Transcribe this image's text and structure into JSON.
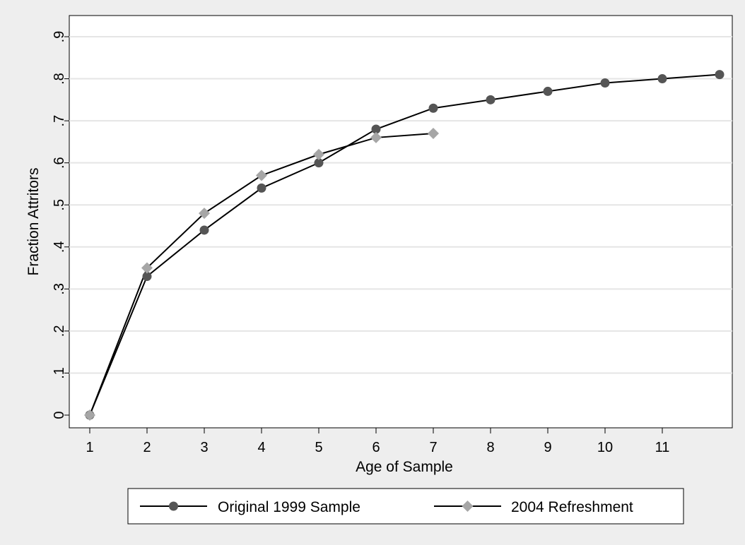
{
  "chart_data": {
    "type": "line",
    "title": "",
    "xlabel": "Age of Sample",
    "ylabel": "Fraction Attritors",
    "xlim": [
      1,
      12
    ],
    "ylim": [
      0,
      0.9
    ],
    "x_ticks": [
      1,
      2,
      3,
      4,
      5,
      6,
      7,
      8,
      9,
      10,
      11
    ],
    "x_tick_labels": [
      "1",
      "2",
      "3",
      "4",
      "5",
      "6",
      "7",
      "8",
      "9",
      "10",
      "11"
    ],
    "y_ticks": [
      0,
      0.1,
      0.2,
      0.3,
      0.4,
      0.5,
      0.6,
      0.7,
      0.8,
      0.9
    ],
    "y_tick_labels": [
      "0",
      ".1",
      ".2",
      ".3",
      ".4",
      ".5",
      ".6",
      ".7",
      ".8",
      ".9"
    ],
    "grid": true,
    "legend_position": "bottom",
    "series": [
      {
        "name": "Original 1999 Sample",
        "marker": "circle",
        "color": "#555555",
        "x": [
          1,
          2,
          3,
          4,
          5,
          6,
          7,
          8,
          9,
          10,
          11,
          12
        ],
        "values": [
          0,
          0.33,
          0.44,
          0.54,
          0.6,
          0.68,
          0.73,
          0.75,
          0.77,
          0.79,
          0.8,
          0.81
        ]
      },
      {
        "name": "2004 Refreshment",
        "marker": "diamond",
        "color": "#a6a6a6",
        "x": [
          1,
          2,
          3,
          4,
          5,
          6,
          7
        ],
        "values": [
          0,
          0.35,
          0.48,
          0.57,
          0.62,
          0.66,
          0.67
        ]
      }
    ]
  }
}
